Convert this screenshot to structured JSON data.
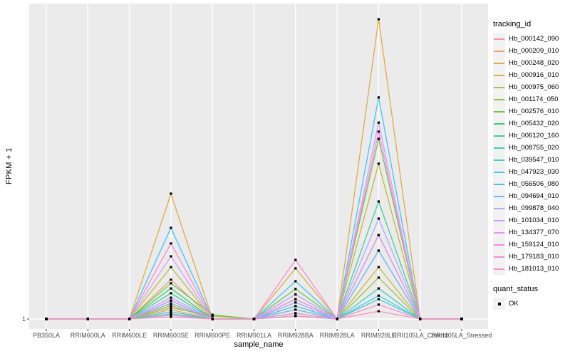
{
  "figure": {
    "background": "#FFFFFF",
    "panel_background": "#EBEBEB",
    "grid_color": "#FFFFFF",
    "tick_color": "#333333",
    "tick_label_color": "#4D4D4D",
    "point_color": "#000000",
    "legend_key_background": "#F2F2F2"
  },
  "chart_data": {
    "type": "line",
    "title": "",
    "xlabel": "sample_name",
    "ylabel": "FPKM + 1",
    "categories": [
      "PB350LA",
      "RRIM600LA",
      "RRIM600LE",
      "RRIM600SE",
      "RRIM600PE",
      "RRIM901LA",
      "RRIM928BA",
      "RRIM928LA",
      "RRIM928LE",
      "RRII105LA_Control",
      "RRII105LA_Stressed"
    ],
    "y_axis": {
      "tick_labels": [
        "1"
      ],
      "baseline_value": 1,
      "scale_note": "Only the '1' tick is labeled; series values below are estimated fractions of full panel height above the y=1 baseline (0 = FPKM+1 of 1, 1 = tallest peak)"
    },
    "grid": "major vertical per category + horizontal line at 1",
    "legend_position": "right",
    "legend": {
      "color_title": "tracking_id",
      "shape_title": "quant_status",
      "shape_items": [
        {
          "label": "OK",
          "marker": "filled-square"
        }
      ]
    },
    "series": [
      {
        "name": "Hb_000142_090",
        "color": "#FA9892",
        "values": [
          0,
          0,
          0,
          0.031,
          0,
          0,
          0.055,
          0,
          0.28,
          0,
          0
        ]
      },
      {
        "name": "Hb_000209_010",
        "color": "#EFA265",
        "values": [
          0,
          0,
          0,
          0.131,
          0,
          0,
          0.043,
          0,
          0.228,
          0,
          0
        ]
      },
      {
        "name": "Hb_000248_020",
        "color": "#E2AC40",
        "values": [
          0,
          0,
          0,
          0.418,
          0,
          0,
          0.169,
          0,
          1.0,
          0,
          0
        ]
      },
      {
        "name": "Hb_000916_010",
        "color": "#D0B440",
        "values": [
          0,
          0,
          0,
          0.045,
          0,
          0,
          0.031,
          0,
          0.173,
          0,
          0
        ]
      },
      {
        "name": "Hb_000975_060",
        "color": "#BABC40",
        "values": [
          0,
          0,
          0,
          0.173,
          0,
          0,
          0.019,
          0,
          0.518,
          0,
          0
        ]
      },
      {
        "name": "Hb_001174_050",
        "color": "#9DC240",
        "values": [
          0,
          0,
          0,
          0.038,
          0.01,
          0,
          0.01,
          0,
          0.138,
          0,
          0
        ]
      },
      {
        "name": "Hb_002576_010",
        "color": "#6BC840",
        "values": [
          0,
          0,
          0,
          0.119,
          0.014,
          0,
          0.1,
          0,
          0.601,
          0,
          0
        ]
      },
      {
        "name": "Hb_005432_020",
        "color": "#40CC7A",
        "values": [
          0,
          0,
          0,
          0.102,
          0,
          0,
          0.082,
          0,
          0.28,
          0,
          0
        ]
      },
      {
        "name": "Hb_006120_160",
        "color": "#40CF9E",
        "values": [
          0,
          0,
          0,
          0.086,
          0,
          0,
          0.066,
          0,
          0.392,
          0,
          0
        ]
      },
      {
        "name": "Hb_008755_020",
        "color": "#40D0B8",
        "values": [
          0,
          0,
          0,
          0.024,
          0,
          0,
          0.019,
          0,
          0.102,
          0,
          0
        ]
      },
      {
        "name": "Hb_039547_010",
        "color": "#40CFD3",
        "values": [
          0,
          0,
          0,
          0.017,
          0,
          0,
          0.01,
          0,
          0.066,
          0,
          0
        ]
      },
      {
        "name": "Hb_047923_030",
        "color": "#40CBE8",
        "values": [
          0,
          0,
          0,
          0.061,
          0,
          0,
          0.043,
          0,
          0.078,
          0,
          0
        ]
      },
      {
        "name": "Hb_056506_080",
        "color": "#40C4F9",
        "values": [
          0,
          0,
          0,
          0.304,
          0,
          0,
          0.126,
          0,
          0.739,
          0,
          0
        ]
      },
      {
        "name": "Hb_094694_010",
        "color": "#67B9FF",
        "values": [
          0,
          0,
          0,
          0.052,
          0,
          0,
          0.031,
          0,
          0.228,
          0,
          0
        ]
      },
      {
        "name": "Hb_099878_040",
        "color": "#AFACFF",
        "values": [
          0,
          0,
          0,
          0.071,
          0,
          0,
          0.055,
          0,
          0.335,
          0,
          0
        ]
      },
      {
        "name": "Hb_101034_010",
        "color": "#D59DFF",
        "values": [
          0,
          0,
          0,
          0.209,
          0,
          0,
          0.082,
          0,
          0.655,
          0,
          0
        ]
      },
      {
        "name": "Hb_134377_070",
        "color": "#ED90F6",
        "values": [
          0,
          0,
          0,
          0.062,
          0,
          0,
          0.066,
          0,
          0.28,
          0,
          0
        ]
      },
      {
        "name": "Hb_159124_010",
        "color": "#FB89E4",
        "values": [
          0,
          0,
          0,
          0.012,
          0,
          0,
          0.019,
          0,
          0.625,
          0,
          0
        ]
      },
      {
        "name": "Hb_179183_010",
        "color": "#FF89CD",
        "values": [
          0,
          0,
          0,
          0.252,
          0,
          0,
          0.197,
          0,
          0.048,
          0,
          0
        ]
      },
      {
        "name": "Hb_181013_010",
        "color": "#FF8FB2",
        "values": [
          0,
          0,
          0,
          0.007,
          0,
          0,
          0.01,
          0,
          0.026,
          0,
          0
        ]
      }
    ]
  }
}
